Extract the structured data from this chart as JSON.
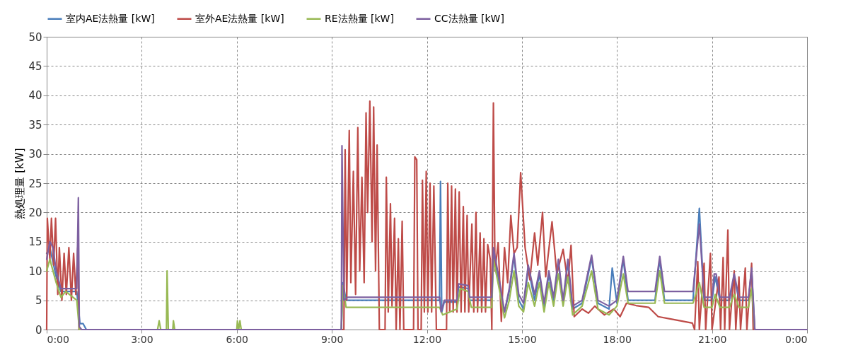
{
  "chart_data": {
    "type": "line",
    "ylabel": "熱処理量 [kW]",
    "xlim": [
      0,
      24
    ],
    "ylim": [
      0,
      50
    ],
    "xticks": [
      {
        "value": 0,
        "label": "0:00"
      },
      {
        "value": 3,
        "label": "3:00"
      },
      {
        "value": 6,
        "label": "6:00"
      },
      {
        "value": 9,
        "label": "9:00"
      },
      {
        "value": 12,
        "label": "12:00"
      },
      {
        "value": 15,
        "label": "15:00"
      },
      {
        "value": 18,
        "label": "18:00"
      },
      {
        "value": 21,
        "label": "21:00"
      },
      {
        "value": 24,
        "label": "0:00"
      }
    ],
    "yticks": [
      0,
      5,
      10,
      15,
      20,
      25,
      30,
      35,
      40,
      45,
      50
    ],
    "grid": true,
    "legend": "top",
    "marker": "none",
    "line_style": "solid",
    "series": [
      {
        "name": "室内AE法熱量 [kW]",
        "color": "#4a7ebb",
        "x": [
          0,
          0.1,
          0.3,
          0.45,
          0.95,
          1.05,
          1.15,
          1.25,
          9.3,
          9.35,
          9.45,
          12.4,
          12.43,
          12.47,
          12.55,
          12.95,
          13.0,
          13.3,
          13.35,
          14.05,
          14.1,
          14.3,
          14.45,
          14.6,
          14.75,
          14.9,
          15.05,
          15.2,
          15.4,
          15.55,
          15.7,
          15.85,
          16.0,
          16.15,
          16.3,
          16.45,
          16.6,
          16.9,
          17.2,
          17.4,
          17.75,
          17.85,
          18.0,
          18.2,
          18.35,
          19.2,
          19.35,
          19.5,
          20.4,
          20.6,
          20.75,
          21.0,
          21.1,
          21.25,
          21.55,
          21.7,
          21.85,
          22.15,
          22.25,
          22.35,
          24
        ],
        "values": [
          13,
          14,
          9,
          6.5,
          6.5,
          1,
          1,
          0,
          0,
          8,
          5,
          5,
          25.3,
          3,
          4.7,
          4.7,
          7.3,
          7,
          5,
          5,
          13,
          7,
          3,
          6.5,
          12.5,
          5,
          3.5,
          10.5,
          5,
          9.5,
          3.5,
          9.5,
          4.5,
          11.5,
          4.5,
          11.5,
          3.5,
          4.5,
          12.2,
          4.5,
          3.5,
          10.5,
          4.5,
          12,
          5,
          5,
          12,
          5,
          5,
          20.7,
          5,
          5,
          9,
          5,
          5,
          9,
          5,
          5,
          10,
          0,
          0
        ]
      },
      {
        "name": "室外AE法熱量 [kW]",
        "color": "#be4b48",
        "x": [
          0,
          0.02,
          0.1,
          0.15,
          0.22,
          0.28,
          0.35,
          0.4,
          0.48,
          0.55,
          0.62,
          0.7,
          0.78,
          0.85,
          0.92,
          0.98,
          1.02,
          9.38,
          9.42,
          9.47,
          9.55,
          9.6,
          9.68,
          9.75,
          9.82,
          9.88,
          9.95,
          10.02,
          10.08,
          10.13,
          10.2,
          10.27,
          10.32,
          10.38,
          10.43,
          10.5,
          10.68,
          10.72,
          10.78,
          10.85,
          10.9,
          10.98,
          11.03,
          11.1,
          11.15,
          11.22,
          11.27,
          11.58,
          11.62,
          11.68,
          11.72,
          11.82,
          11.86,
          11.92,
          11.98,
          12.03,
          12.1,
          12.15,
          12.22,
          12.3,
          12.62,
          12.66,
          12.72,
          12.78,
          12.83,
          12.9,
          12.95,
          13.02,
          13.08,
          13.15,
          13.2,
          13.27,
          13.32,
          13.42,
          13.48,
          13.55,
          13.6,
          13.68,
          13.73,
          13.8,
          13.85,
          13.92,
          14.0,
          14.05,
          14.1,
          14.15,
          14.25,
          14.35,
          14.45,
          14.55,
          14.65,
          14.75,
          14.85,
          14.96,
          15.1,
          15.25,
          15.4,
          15.5,
          15.65,
          15.75,
          15.95,
          16.1,
          16.3,
          16.45,
          16.55,
          16.65,
          16.9,
          17.1,
          17.3,
          17.6,
          17.9,
          18.1,
          18.3,
          18.6,
          19.0,
          19.3,
          19.7,
          20.0,
          20.38,
          20.45,
          20.55,
          20.6,
          20.75,
          20.8,
          20.95,
          21.0,
          21.22,
          21.27,
          21.35,
          21.4,
          21.5,
          21.55,
          21.7,
          21.75,
          21.85,
          21.9,
          22.05,
          22.1,
          22.25,
          22.3,
          24
        ],
        "values": [
          0,
          19,
          12,
          19,
          11,
          19,
          6,
          14,
          5,
          13,
          6,
          14,
          5,
          13,
          6,
          14,
          0,
          0,
          30.7,
          5,
          34,
          8,
          27,
          6,
          34.5,
          10,
          26,
          8,
          37,
          20,
          39,
          15,
          38,
          10,
          31.5,
          0,
          0,
          26,
          3,
          21.5,
          4,
          19,
          0,
          15.5,
          0,
          18.5,
          0,
          0,
          29.5,
          29,
          0,
          0,
          25.5,
          3,
          27,
          3,
          25,
          3,
          24.5,
          0,
          0,
          25,
          3,
          24.5,
          3,
          24,
          3,
          23.5,
          3,
          21,
          3,
          19.5,
          3,
          18,
          3,
          20,
          3,
          16.5,
          3,
          15.5,
          3,
          14.5,
          12,
          0,
          38.7,
          10,
          14.8,
          1.4,
          14,
          8,
          19.5,
          13,
          14,
          26.8,
          14,
          8.5,
          16.5,
          11,
          20,
          9,
          18.4,
          9.5,
          13.7,
          8,
          14.4,
          2.2,
          3.5,
          2.8,
          4,
          2.5,
          3.5,
          2.2,
          4.5,
          4.1,
          3.8,
          2.2,
          1.8,
          1.5,
          1.1,
          0,
          11.6,
          0,
          11.3,
          0,
          13,
          0,
          9,
          0,
          12.3,
          0,
          17,
          0,
          10,
          0,
          9,
          0,
          10.5,
          0,
          11.3,
          0,
          0
        ]
      },
      {
        "name": "RE法熱量 [kW]",
        "color": "#98b954",
        "x": [
          0,
          0.1,
          0.3,
          0.45,
          0.6,
          0.95,
          1.03,
          3.5,
          3.55,
          3.6,
          3.78,
          3.8,
          3.84,
          3.98,
          4.0,
          4.04,
          6.0,
          6.02,
          6.06,
          6.1,
          6.14,
          9.3,
          9.35,
          9.45,
          12.4,
          12.5,
          12.95,
          13.05,
          13.3,
          13.4,
          14.05,
          14.1,
          14.3,
          14.45,
          14.6,
          14.75,
          14.9,
          15.05,
          15.2,
          15.4,
          15.55,
          15.7,
          15.85,
          16.0,
          16.15,
          16.3,
          16.45,
          16.6,
          16.9,
          17.2,
          17.4,
          17.75,
          18.0,
          18.2,
          18.35,
          19.2,
          19.35,
          19.5,
          20.4,
          20.6,
          20.75,
          21.0,
          21.1,
          21.25,
          21.55,
          21.7,
          21.85,
          22.15,
          22.25,
          22.35,
          24
        ],
        "values": [
          10,
          12,
          8,
          5.5,
          6.5,
          5,
          0,
          0,
          1.5,
          0,
          0,
          10,
          0,
          0,
          1.5,
          0,
          0,
          1.5,
          0,
          1.5,
          0,
          0,
          7.5,
          3.8,
          3.8,
          2.5,
          3.5,
          7,
          6.5,
          3.8,
          3.8,
          12,
          6.5,
          2,
          5,
          10,
          4,
          3,
          8,
          4,
          8,
          3,
          8,
          4,
          9.5,
          4,
          9,
          2.5,
          4,
          10,
          3.5,
          2.5,
          4,
          9.5,
          4.5,
          4.5,
          10,
          4.5,
          4.5,
          8,
          3.8,
          3.8,
          6,
          3.8,
          3.8,
          6,
          3.8,
          3.8,
          7,
          0,
          0
        ]
      },
      {
        "name": "CC法熱量 [kW]",
        "color": "#7d60a0",
        "x": [
          0,
          0.1,
          0.2,
          0.3,
          0.45,
          0.95,
          1.0,
          1.03,
          1.1,
          9.3,
          9.32,
          9.38,
          9.5,
          12.4,
          12.45,
          12.55,
          12.95,
          13.0,
          13.3,
          13.35,
          14.05,
          14.1,
          14.3,
          14.45,
          14.6,
          14.75,
          14.9,
          15.05,
          15.2,
          15.4,
          15.55,
          15.7,
          15.85,
          16.0,
          16.15,
          16.3,
          16.45,
          16.6,
          16.9,
          17.2,
          17.4,
          17.75,
          18.0,
          18.2,
          18.35,
          19.2,
          19.35,
          19.5,
          20.4,
          20.6,
          20.75,
          21.0,
          21.07,
          21.13,
          21.25,
          21.55,
          21.7,
          21.85,
          22.15,
          22.25,
          22.35,
          24
        ],
        "values": [
          12,
          15,
          14,
          10,
          7,
          7,
          22.5,
          0.5,
          0,
          0,
          31.4,
          5,
          5.5,
          5.5,
          3,
          5,
          5,
          7.8,
          7.5,
          5.5,
          5.5,
          14,
          8,
          3,
          7,
          13,
          6,
          4.5,
          11,
          6,
          10,
          4.5,
          10,
          5.5,
          12,
          5,
          12,
          4,
          5,
          12.7,
          5,
          4,
          5,
          12.5,
          6.5,
          6.5,
          12.5,
          6.5,
          6.5,
          18,
          5.5,
          5.5,
          9.5,
          9.5,
          5.5,
          5.5,
          9.5,
          5.5,
          5.5,
          10.5,
          0,
          0
        ]
      }
    ]
  }
}
